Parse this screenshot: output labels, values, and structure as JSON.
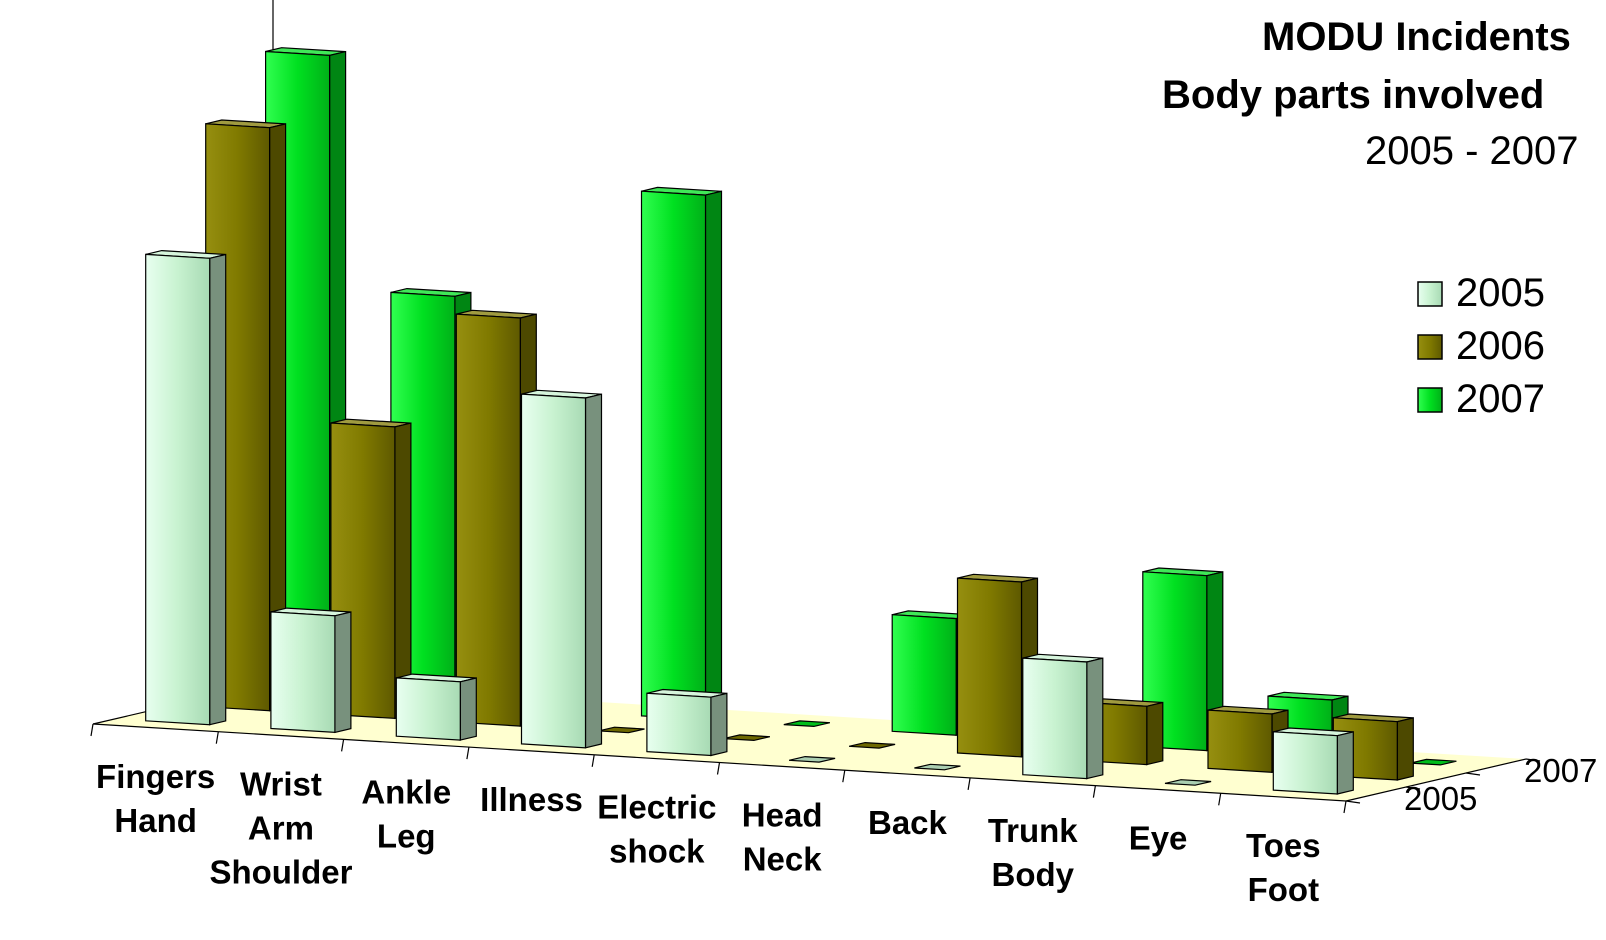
{
  "chart_data": {
    "type": "bar",
    "title": "MODU Incidents",
    "subtitle": "Body parts involved",
    "period": "2005 - 2007",
    "categories": [
      [
        "Fingers",
        "Hand"
      ],
      [
        "Wrist",
        "Arm",
        "Shoulder"
      ],
      [
        "Ankle",
        "Leg"
      ],
      [
        "Illness"
      ],
      [
        "Electric",
        "shock"
      ],
      [
        "Head",
        "Neck"
      ],
      [
        "Back"
      ],
      [
        "Trunk",
        "Body"
      ],
      [
        "Eye"
      ],
      [
        "Toes",
        "Foot"
      ]
    ],
    "series": [
      {
        "name": "2005",
        "values": [
          8,
          2,
          1,
          6,
          1,
          0,
          0,
          2,
          0,
          1
        ],
        "color": "#c8f2d0"
      },
      {
        "name": "2006",
        "values": [
          10,
          5,
          7,
          0,
          0,
          0,
          3,
          1,
          1,
          1
        ],
        "color": "#807a00"
      },
      {
        "name": "2007",
        "values": [
          11,
          7,
          5,
          9,
          0,
          2,
          1,
          3,
          1,
          0
        ],
        "color": "#00e020"
      }
    ],
    "ylim": [
      0,
      12
    ],
    "yticks": [
      "0",
      "3",
      "6",
      "9",
      "12"
    ],
    "depth_axis_labels": [
      "2007",
      "2005"
    ],
    "legend_placement": "right",
    "floor_color": "#ffffd0"
  }
}
